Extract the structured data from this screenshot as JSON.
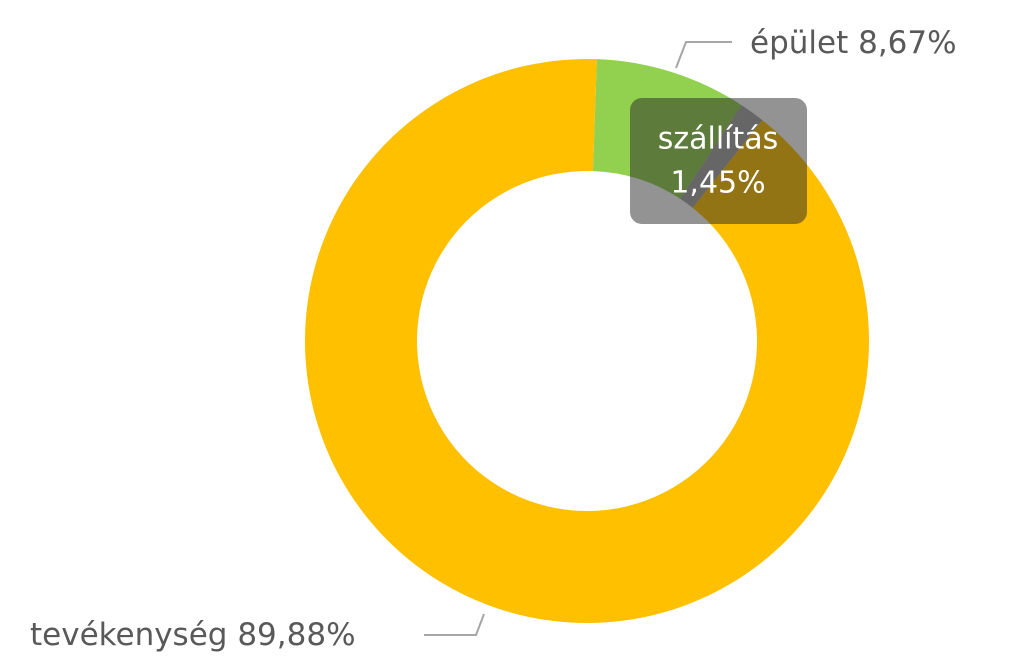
{
  "chart_data": {
    "type": "donut",
    "categories": [
      "épület",
      "szállítás",
      "tevékenység"
    ],
    "values": [
      8.67,
      1.45,
      89.88
    ],
    "value_labels": [
      "8,67%",
      "1,45%",
      "89,88%"
    ],
    "colors": [
      "#92d050",
      "#a5a5a5",
      "#ffc000"
    ]
  }
}
